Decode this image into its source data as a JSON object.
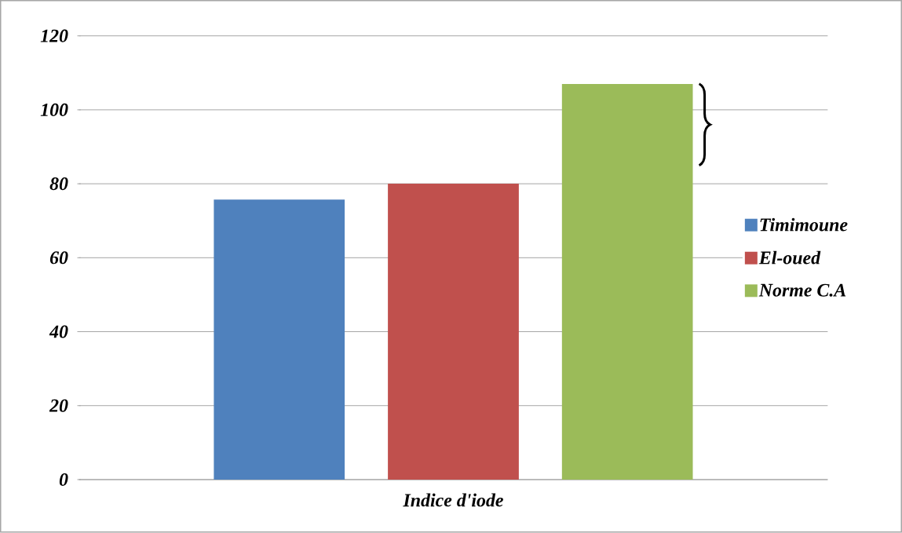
{
  "chart_data": {
    "type": "bar",
    "xlabel": null,
    "categories": [
      "Indice d'iode"
    ],
    "series": [
      {
        "name": "Timimoune",
        "color": "#4f81bd",
        "values": [
          75.7
        ]
      },
      {
        "name": "El-oued",
        "color": "#c0504d",
        "values": [
          80
        ]
      },
      {
        "name": "Norme C.A",
        "color": "#9bbb59",
        "values": [
          107
        ]
      }
    ],
    "ylim": [
      0,
      120
    ],
    "yticks": [
      0,
      20,
      40,
      60,
      80,
      100,
      120
    ],
    "grid": "y",
    "legend": "right"
  }
}
